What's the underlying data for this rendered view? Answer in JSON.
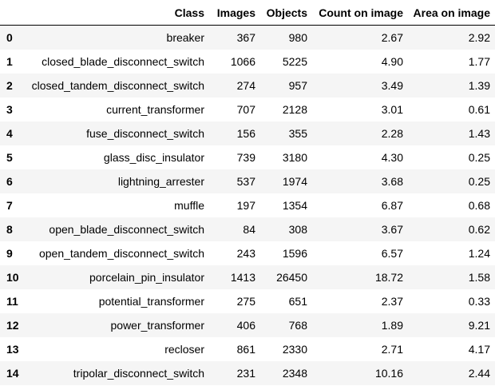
{
  "table": {
    "headers": [
      "",
      "Class",
      "Images",
      "Objects",
      "Count on image",
      "Area on image"
    ],
    "rows": [
      {
        "index": "0",
        "class": "breaker",
        "images": "367",
        "objects": "980",
        "count": "2.67",
        "area": "2.92"
      },
      {
        "index": "1",
        "class": "closed_blade_disconnect_switch",
        "images": "1066",
        "objects": "5225",
        "count": "4.90",
        "area": "1.77"
      },
      {
        "index": "2",
        "class": "closed_tandem_disconnect_switch",
        "images": "274",
        "objects": "957",
        "count": "3.49",
        "area": "1.39"
      },
      {
        "index": "3",
        "class": "current_transformer",
        "images": "707",
        "objects": "2128",
        "count": "3.01",
        "area": "0.61"
      },
      {
        "index": "4",
        "class": "fuse_disconnect_switch",
        "images": "156",
        "objects": "355",
        "count": "2.28",
        "area": "1.43"
      },
      {
        "index": "5",
        "class": "glass_disc_insulator",
        "images": "739",
        "objects": "3180",
        "count": "4.30",
        "area": "0.25"
      },
      {
        "index": "6",
        "class": "lightning_arrester",
        "images": "537",
        "objects": "1974",
        "count": "3.68",
        "area": "0.25"
      },
      {
        "index": "7",
        "class": "muffle",
        "images": "197",
        "objects": "1354",
        "count": "6.87",
        "area": "0.68"
      },
      {
        "index": "8",
        "class": "open_blade_disconnect_switch",
        "images": "84",
        "objects": "308",
        "count": "3.67",
        "area": "0.62"
      },
      {
        "index": "9",
        "class": "open_tandem_disconnect_switch",
        "images": "243",
        "objects": "1596",
        "count": "6.57",
        "area": "1.24"
      },
      {
        "index": "10",
        "class": "porcelain_pin_insulator",
        "images": "1413",
        "objects": "26450",
        "count": "18.72",
        "area": "1.58"
      },
      {
        "index": "11",
        "class": "potential_transformer",
        "images": "275",
        "objects": "651",
        "count": "2.37",
        "area": "0.33"
      },
      {
        "index": "12",
        "class": "power_transformer",
        "images": "406",
        "objects": "768",
        "count": "1.89",
        "area": "9.21"
      },
      {
        "index": "13",
        "class": "recloser",
        "images": "861",
        "objects": "2330",
        "count": "2.71",
        "area": "4.17"
      },
      {
        "index": "14",
        "class": "tripolar_disconnect_switch",
        "images": "231",
        "objects": "2348",
        "count": "10.16",
        "area": "2.44"
      }
    ]
  }
}
